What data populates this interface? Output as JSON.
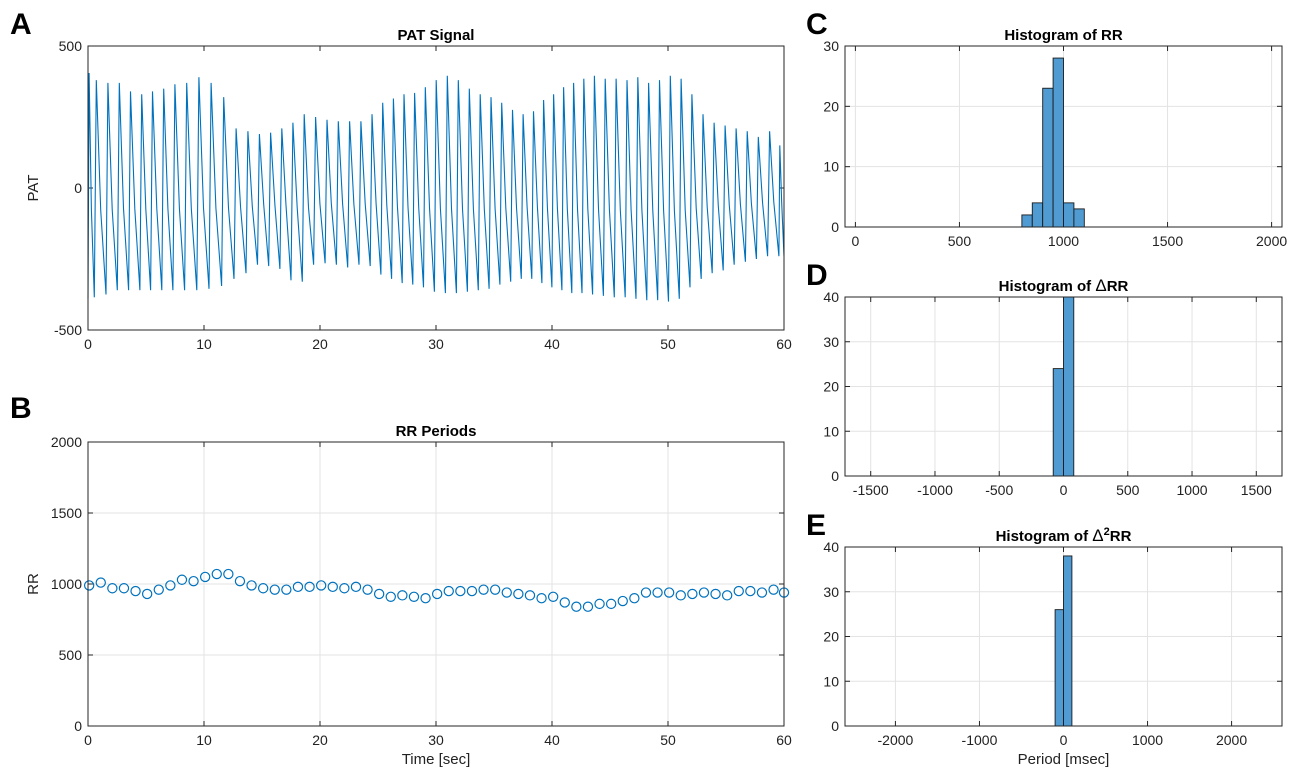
{
  "chart_data": [
    {
      "panel": "A",
      "type": "line",
      "title": "PAT Signal",
      "xlabel": "",
      "ylabel": "PAT",
      "xlim": [
        0,
        60
      ],
      "ylim": [
        -500,
        500
      ],
      "xticks": [
        0,
        10,
        20,
        30,
        40,
        50,
        60
      ],
      "yticks": [
        -500,
        0,
        500
      ],
      "grid": false,
      "color": "#0072BD",
      "series": [
        {
          "beat_times": [
            0.0,
            0.54,
            1.55,
            2.53,
            3.5,
            4.47,
            5.4,
            6.36,
            7.32,
            8.33,
            9.38,
            10.43,
            11.52,
            12.59,
            13.62,
            14.61,
            15.58,
            16.54,
            17.5,
            18.47,
            19.45,
            20.44,
            21.41,
            22.39,
            23.36,
            24.33,
            25.25,
            26.17,
            27.09,
            28.0,
            28.92,
            29.86,
            30.81,
            31.76,
            32.71,
            33.65,
            34.58,
            35.51,
            36.44,
            37.35,
            38.26,
            39.13,
            39.99,
            40.85,
            41.71,
            42.59,
            43.5,
            44.43,
            45.37,
            46.31,
            47.24,
            48.17,
            49.11,
            50.04,
            50.97,
            51.9,
            52.86,
            53.81,
            54.76,
            55.71,
            56.67,
            57.62,
            58.59,
            59.56
          ],
          "peaks": [
            405,
            380,
            370,
            370,
            340,
            330,
            340,
            350,
            365,
            370,
            390,
            370,
            320,
            210,
            200,
            190,
            195,
            210,
            230,
            260,
            250,
            240,
            235,
            235,
            235,
            260,
            300,
            315,
            330,
            335,
            355,
            380,
            395,
            380,
            350,
            330,
            320,
            300,
            275,
            260,
            270,
            310,
            330,
            355,
            370,
            385,
            395,
            385,
            385,
            380,
            390,
            370,
            380,
            395,
            385,
            330,
            260,
            230,
            220,
            210,
            200,
            180,
            200,
            150
          ],
          "troughs": [
            -390,
            -385,
            -375,
            -360,
            -360,
            -360,
            -360,
            -360,
            -360,
            -360,
            -360,
            -355,
            -345,
            -320,
            -300,
            -270,
            -275,
            -285,
            -325,
            -330,
            -270,
            -265,
            -270,
            -280,
            -270,
            -275,
            -305,
            -320,
            -335,
            -340,
            -350,
            -365,
            -370,
            -370,
            -365,
            -360,
            -355,
            -340,
            -330,
            -320,
            -320,
            -335,
            -350,
            -360,
            -370,
            -370,
            -375,
            -380,
            -385,
            -385,
            -390,
            -395,
            -395,
            -400,
            -390,
            -350,
            -320,
            -300,
            -290,
            -270,
            -260,
            -250,
            -240,
            -240
          ]
        }
      ]
    },
    {
      "panel": "B",
      "type": "scatter",
      "title": "RR Periods",
      "xlabel": "Time [sec]",
      "ylabel": "RR",
      "xlim": [
        0,
        60
      ],
      "ylim": [
        0,
        2000
      ],
      "xticks": [
        0,
        10,
        20,
        30,
        40,
        50,
        60
      ],
      "yticks": [
        0,
        500,
        1000,
        1500,
        2000
      ],
      "grid": true,
      "color": "#0072BD",
      "series": [
        {
          "x": [
            0.1,
            1.1,
            2.1,
            3.1,
            4.1,
            5.1,
            6.1,
            7.1,
            8.1,
            9.1,
            10.1,
            11.1,
            12.1,
            13.1,
            14.1,
            15.1,
            16.1,
            17.1,
            18.1,
            19.1,
            20.1,
            21.1,
            22.1,
            23.1,
            24.1,
            25.1,
            26.1,
            27.1,
            28.1,
            29.1,
            30.1,
            31.1,
            32.1,
            33.1,
            34.1,
            35.1,
            36.1,
            37.1,
            38.1,
            39.1,
            40.1,
            41.1,
            42.1,
            43.1,
            44.1,
            45.1,
            46.1,
            47.1,
            48.1,
            49.1,
            50.1,
            51.1,
            52.1,
            53.1,
            54.1,
            55.1,
            56.1,
            57.1,
            58.1,
            59.1,
            60.0
          ],
          "y": [
            990,
            1010,
            970,
            970,
            950,
            930,
            960,
            990,
            1030,
            1020,
            1050,
            1070,
            1070,
            1020,
            990,
            970,
            960,
            960,
            980,
            980,
            990,
            980,
            970,
            980,
            960,
            930,
            910,
            920,
            910,
            900,
            930,
            950,
            950,
            950,
            960,
            960,
            940,
            930,
            920,
            900,
            910,
            870,
            840,
            840,
            860,
            860,
            880,
            900,
            940,
            940,
            940,
            920,
            930,
            940,
            930,
            920,
            950,
            950,
            940,
            960,
            940
          ]
        }
      ]
    },
    {
      "panel": "C",
      "type": "bar",
      "title": "Histogram of RR",
      "xlabel": "",
      "ylabel": "",
      "xlim": [
        -50,
        2050
      ],
      "ylim": [
        0,
        30
      ],
      "xticks": [
        0,
        500,
        1000,
        1500,
        2000
      ],
      "yticks": [
        0,
        10,
        20,
        30
      ],
      "grid": true,
      "color": "#4F9BD2",
      "bin_width": 50,
      "bin_edges_start": [
        800,
        850,
        900,
        950,
        1000,
        1050
      ],
      "values": [
        2,
        4,
        23,
        28,
        4,
        3
      ]
    },
    {
      "panel": "D",
      "type": "bar",
      "title": "Histogram of ΔRR",
      "xlabel": "",
      "ylabel": "",
      "xlim": [
        -1700,
        1700
      ],
      "ylim": [
        0,
        40
      ],
      "xticks": [
        -1500,
        -1000,
        -500,
        0,
        500,
        1000,
        1500
      ],
      "yticks": [
        0,
        10,
        20,
        30,
        40
      ],
      "grid": true,
      "color": "#4F9BD2",
      "bin_width": 80,
      "bin_edges_start": [
        -80,
        0
      ],
      "values": [
        24,
        40
      ]
    },
    {
      "panel": "E",
      "type": "bar",
      "title": "Histogram of Δ²RR",
      "xlabel": "Period [msec]",
      "ylabel": "",
      "xlim": [
        -2600,
        2600
      ],
      "ylim": [
        0,
        40
      ],
      "xticks": [
        -2000,
        -1000,
        0,
        1000,
        2000
      ],
      "yticks": [
        0,
        10,
        20,
        30,
        40
      ],
      "grid": true,
      "color": "#4F9BD2",
      "bin_width": 100,
      "bin_edges_start": [
        -100,
        0
      ],
      "values": [
        26,
        38
      ]
    }
  ]
}
